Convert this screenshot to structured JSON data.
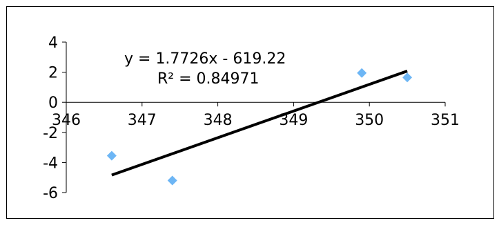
{
  "chart_data": {
    "type": "scatter",
    "title": "",
    "xlabel": "",
    "ylabel": "",
    "xlim": [
      346,
      351
    ],
    "ylim": [
      -6,
      4
    ],
    "x_ticks": [
      346,
      347,
      348,
      349,
      350,
      351
    ],
    "y_ticks": [
      4,
      2,
      0,
      -2,
      -4,
      -6
    ],
    "grid": false,
    "legend": "none",
    "series": [
      {
        "points": [
          {
            "x": 346.6,
            "y": -3.55
          },
          {
            "x": 347.4,
            "y": -5.2
          },
          {
            "x": 349.9,
            "y": 1.95
          },
          {
            "x": 350.5,
            "y": 1.65
          }
        ],
        "marker": "diamond",
        "color": "#6db6f5"
      }
    ],
    "trendline": {
      "type": "linear",
      "slope": 1.7726,
      "intercept": -619.22,
      "x_range": [
        346.6,
        350.5
      ],
      "color": "#000000"
    },
    "annotations": {
      "equation": "y = 1.7726x - 619.22",
      "r_squared": "R² = 0.84971"
    }
  }
}
